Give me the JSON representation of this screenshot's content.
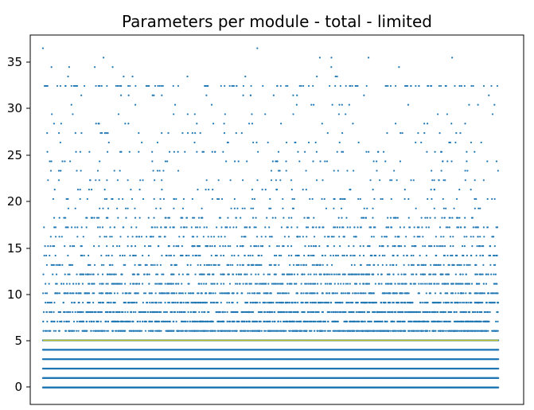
{
  "chart_data": {
    "type": "scatter",
    "title": "Parameters per module - total - limited",
    "xlabel": "",
    "ylabel": "",
    "x_ticks_visible": false,
    "ylim": [
      -1.8,
      37.4
    ],
    "xlim": [
      -50,
      1900
    ],
    "yticks": [
      0,
      5,
      10,
      15,
      20,
      25,
      30,
      35
    ],
    "ytick_labels": [
      "0",
      "5",
      "10",
      "15",
      "20",
      "25",
      "30",
      "35"
    ],
    "grid": false,
    "legend": "none",
    "series": [
      {
        "values_y": [
          0,
          1,
          2,
          3,
          4,
          5,
          6,
          7,
          8,
          9,
          10,
          11,
          12,
          13,
          14,
          15,
          16,
          17,
          18,
          19,
          20,
          21,
          22,
          23,
          24,
          25,
          26,
          27,
          28,
          29,
          30,
          31,
          32,
          33,
          34,
          35,
          36
        ],
        "approx_point_counts": [
          1800,
          1400,
          1300,
          1200,
          1100,
          900,
          700,
          500,
          450,
          380,
          330,
          260,
          230,
          170,
          150,
          140,
          110,
          130,
          90,
          40,
          60,
          30,
          40,
          30,
          35,
          40,
          25,
          30,
          20,
          15,
          15,
          15,
          110,
          8,
          6,
          5,
          2
        ],
        "x_count": 1800,
        "color": "#1f77b4"
      },
      {
        "type": "line",
        "y": 5,
        "x_range": [
          0,
          1800
        ],
        "color": "#bcbd22"
      }
    ]
  }
}
